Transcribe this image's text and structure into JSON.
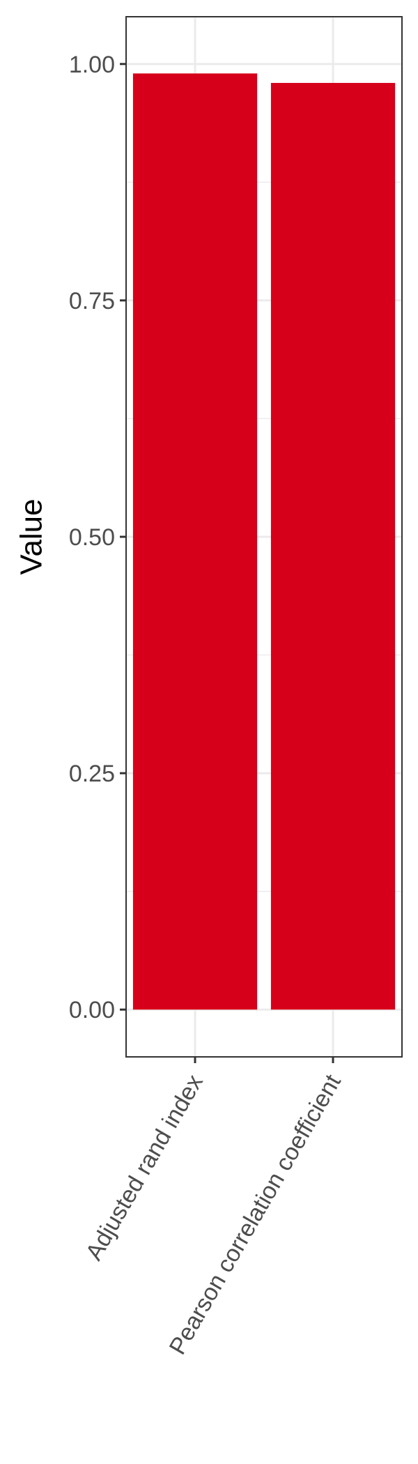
{
  "chart_data": {
    "type": "bar",
    "categories": [
      "Adjusted rand index",
      "Pearson correlation coefficient"
    ],
    "values": [
      0.99,
      0.98
    ],
    "title": "",
    "xlabel": "",
    "ylabel": "Value",
    "ylim": [
      -0.05,
      1.05
    ],
    "yticks": [
      0,
      0.25,
      0.5,
      0.75,
      1
    ],
    "ytick_labels": [
      "0.00",
      "0.25",
      "0.50",
      "0.75",
      "1.00"
    ],
    "minor_yticks": [
      0.125,
      0.375,
      0.625,
      0.875
    ],
    "bar_color": "#d7001a",
    "panel_border_color": "#333333",
    "grid": true,
    "grid_color": "#ebebeb",
    "legend": "none"
  }
}
